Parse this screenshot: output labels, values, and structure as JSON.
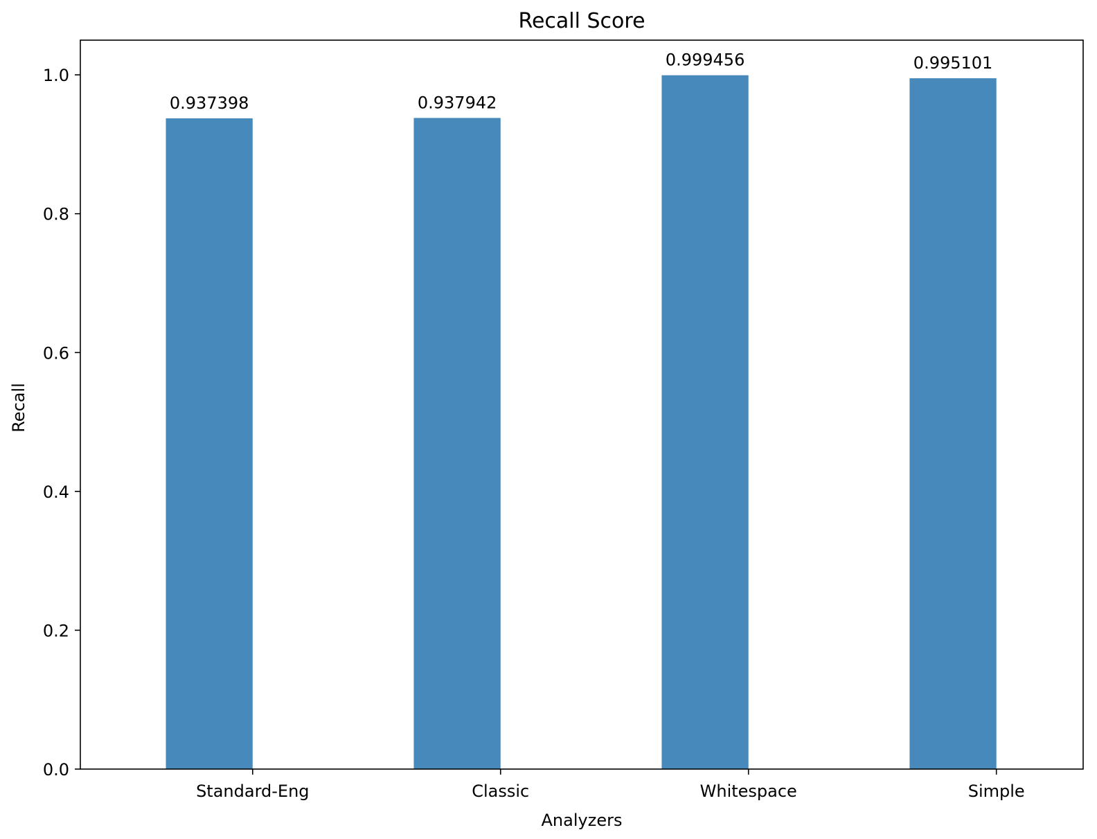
{
  "chart_data": {
    "type": "bar",
    "title": "Recall Score",
    "xlabel": "Analyzers",
    "ylabel": "Recall",
    "categories": [
      "Standard-Eng",
      "Classic",
      "Whitespace",
      "Simple"
    ],
    "values": [
      0.937398,
      0.937942,
      0.999456,
      0.995101
    ],
    "value_labels": [
      "0.937398",
      "0.937942",
      "0.999456",
      "0.995101"
    ],
    "ylim": [
      0,
      1.05
    ],
    "yticks": [
      0.0,
      0.2,
      0.4,
      0.6,
      0.8,
      1.0
    ],
    "ytick_labels": [
      "0.0",
      "0.2",
      "0.4",
      "0.6",
      "0.8",
      "1.0"
    ],
    "grid": false,
    "legend": "none",
    "bar_color": "#4789bb"
  }
}
